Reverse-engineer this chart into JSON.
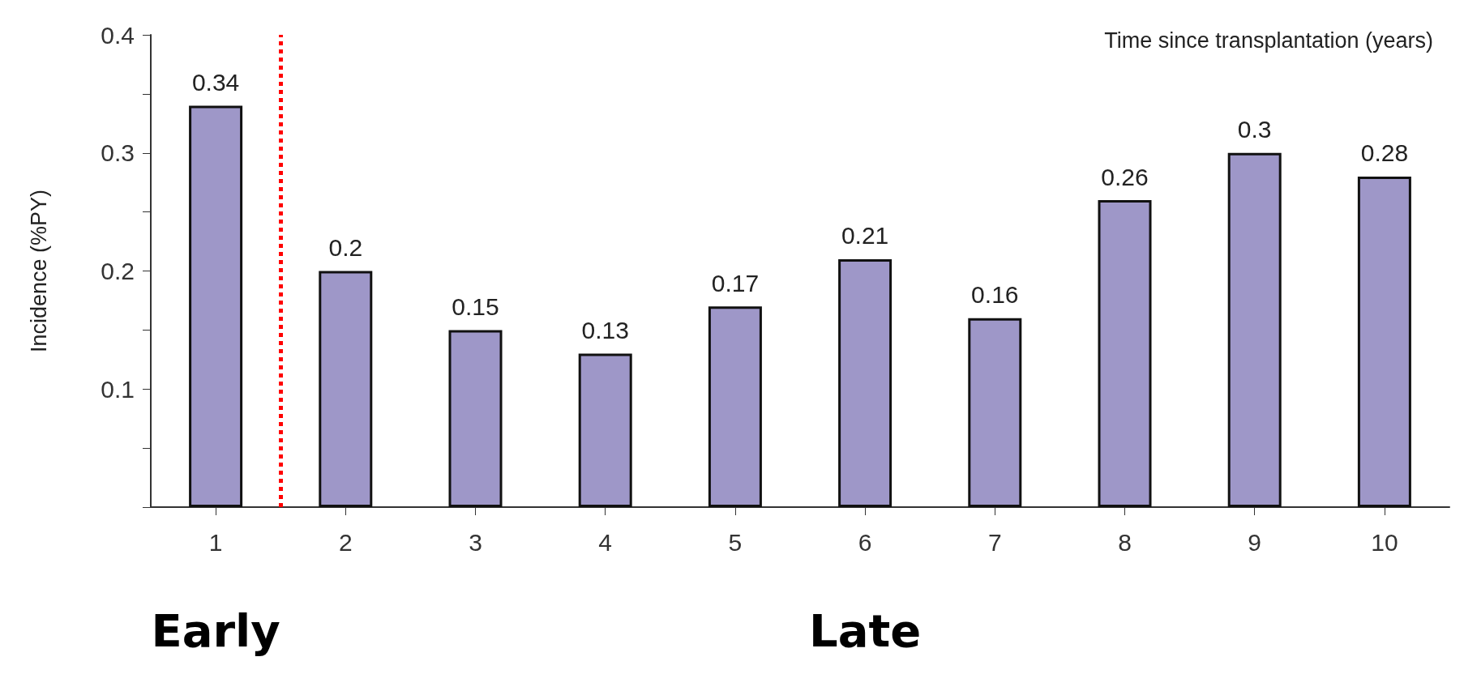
{
  "chart_data": {
    "type": "bar",
    "xlabel": "Time since transplantation (years)",
    "ylabel": "Incidence (%PY)",
    "x": [
      1,
      2,
      3,
      4,
      5,
      6,
      7,
      8,
      9,
      10
    ],
    "values": [
      0.34,
      0.2,
      0.15,
      0.13,
      0.17,
      0.21,
      0.16,
      0.26,
      0.3,
      0.28
    ],
    "color": "#9e97c8",
    "data_labels": true,
    "xlim": [
      0.5,
      10.5
    ],
    "xticks": [
      1,
      2,
      3,
      4,
      5,
      6,
      7,
      8,
      9,
      10
    ],
    "ylim": [
      0,
      0.4
    ],
    "yticks": [
      {
        "value": 0,
        "label": null
      },
      {
        "value": 0.05,
        "label": null
      },
      0.1,
      {
        "value": 0.15,
        "label": null
      },
      0.2,
      {
        "value": 0.25,
        "label": null
      },
      0.3,
      {
        "value": 0.35,
        "label": null
      },
      0.4
    ],
    "grid": false,
    "ref_lines": [
      {
        "axis": "x",
        "value": 1.5,
        "color": "#ff0000",
        "line_style": "dotted"
      }
    ],
    "annotations": [
      "Early",
      "Late"
    ]
  }
}
